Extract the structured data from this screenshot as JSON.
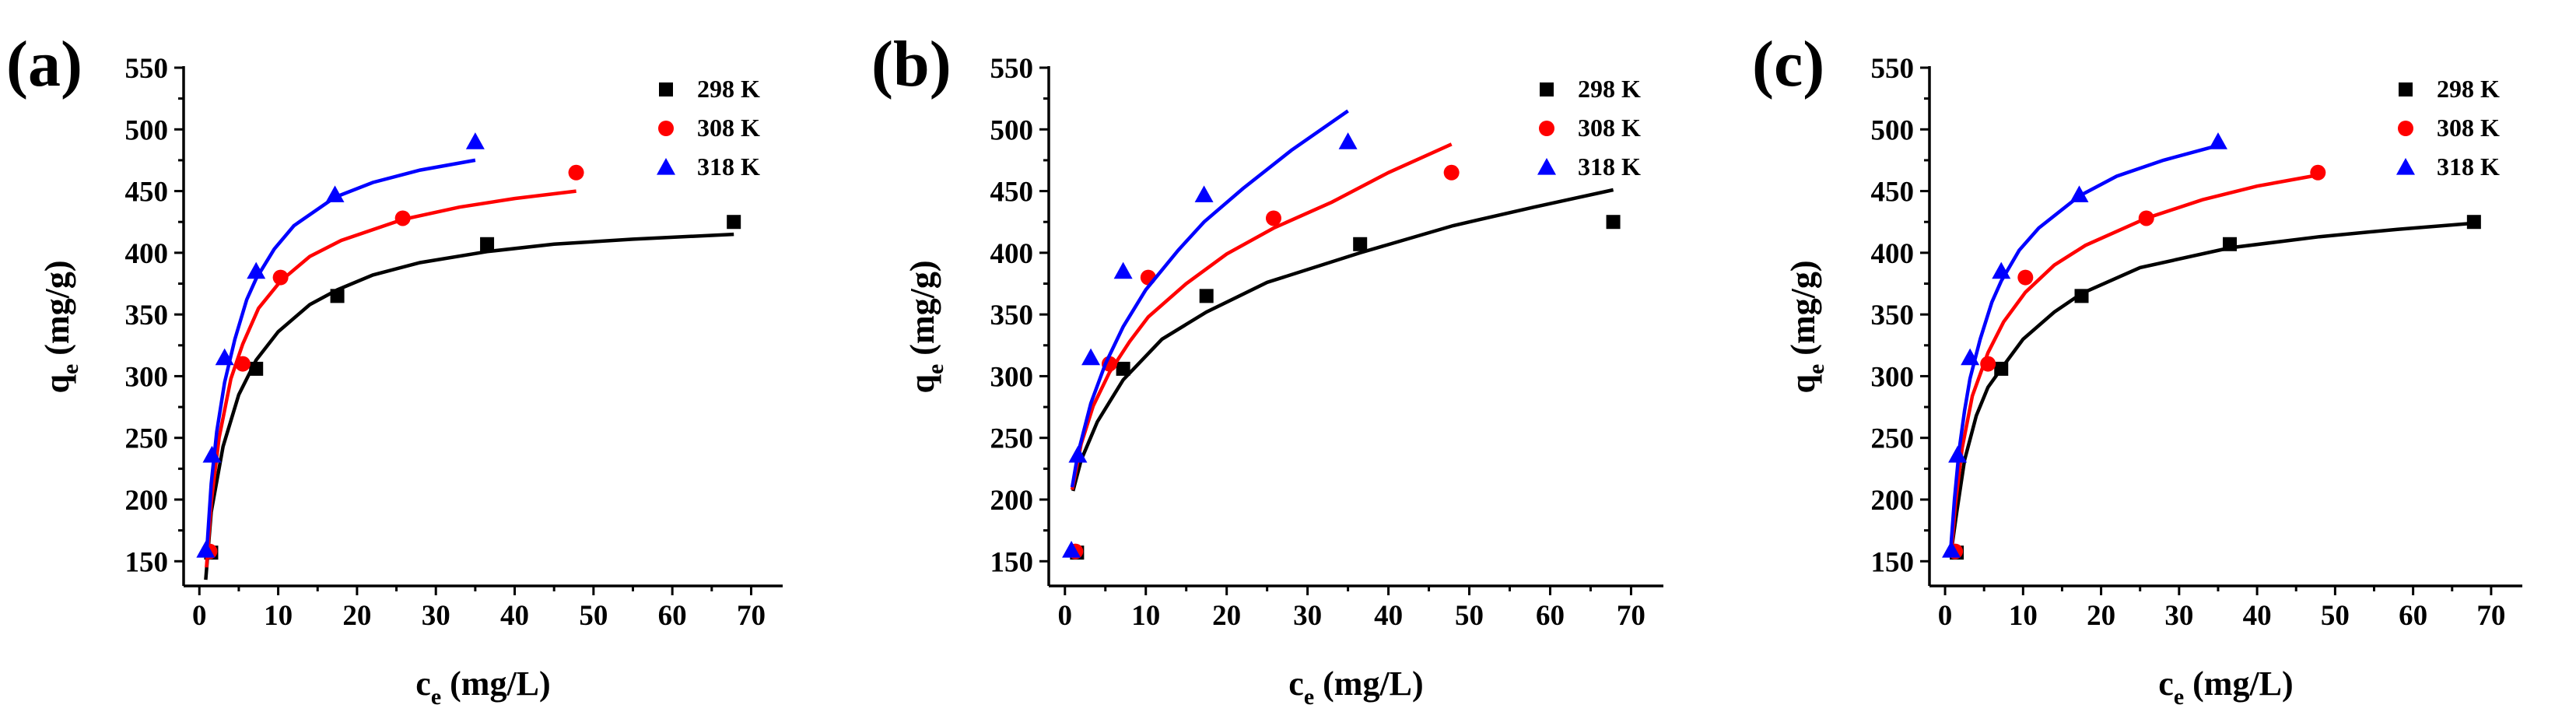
{
  "colors": {
    "298 K": "#000000",
    "308 K": "#ff0000",
    "318 K": "#0000ff"
  },
  "chart_data": [
    {
      "panel": "(a)",
      "type": "scatter",
      "xlabel": {
        "main": "c",
        "sub": "e",
        "unit": " (mg/L)"
      },
      "ylabel": {
        "main": "q",
        "sub": "e",
        "unit": " (mg/g)"
      },
      "xlim": [
        -2,
        74
      ],
      "ylim": [
        130,
        550
      ],
      "xticks": [
        0,
        10,
        20,
        30,
        40,
        50,
        60,
        70
      ],
      "yticks": [
        150,
        200,
        250,
        300,
        350,
        400,
        450,
        500,
        550
      ],
      "legend_position": "top-right",
      "series": [
        {
          "name": "298 K",
          "marker": "square",
          "x": [
            1.5,
            7.2,
            17.5,
            36.5,
            67.8
          ],
          "y": [
            157,
            306,
            365,
            407,
            425
          ],
          "fit": {
            "x": [
              0.8,
              1.5,
              3,
              5,
              7.2,
              10,
              14,
              17.5,
              22,
              28,
              36.5,
              45,
              55,
              67.8
            ],
            "y": [
              135,
              190,
              243,
              285,
              313,
              336,
              358,
              370,
              382,
              392,
              401,
              407,
              411,
              415
            ]
          }
        },
        {
          "name": "308 K",
          "marker": "circle",
          "x": [
            1.3,
            5.5,
            10.3,
            25.8,
            47.8
          ],
          "y": [
            158,
            310,
            380,
            428,
            465
          ],
          "fit": {
            "x": [
              0.9,
              1.5,
              2.5,
              4,
              5.5,
              7.5,
              10.3,
              14,
              18,
              25.8,
              33,
              40,
              47.8
            ],
            "y": [
              145,
              198,
              250,
              298,
              326,
              355,
              377,
              397,
              410,
              427,
              437,
              444,
              450
            ]
          }
        },
        {
          "name": "318 K",
          "marker": "triangle",
          "x": [
            0.8,
            1.6,
            3.2,
            7.2,
            17.2,
            35
          ],
          "y": [
            159,
            236,
            315,
            385,
            447,
            490
          ],
          "fit": {
            "x": [
              0.9,
              1.5,
              2.2,
              3.2,
              4.5,
              6,
              7.2,
              9.5,
              12,
              17.2,
              22,
              28,
              35
            ],
            "y": [
              155,
              213,
              255,
              295,
              330,
              362,
              379,
              403,
              422,
              445,
              457,
              467,
              475
            ]
          }
        }
      ]
    },
    {
      "panel": "(b)",
      "type": "scatter",
      "xlabel": {
        "main": "c",
        "sub": "e",
        "unit": " (mg/L)"
      },
      "ylabel": {
        "main": "q",
        "sub": "e",
        "unit": " (mg/g)"
      },
      "xlim": [
        -2,
        74
      ],
      "ylim": [
        130,
        550
      ],
      "xticks": [
        0,
        10,
        20,
        30,
        40,
        50,
        60,
        70
      ],
      "yticks": [
        150,
        200,
        250,
        300,
        350,
        400,
        450,
        500,
        550
      ],
      "legend_position": "top-right",
      "series": [
        {
          "name": "298 K",
          "marker": "square",
          "x": [
            1.5,
            7.2,
            17.5,
            36.5,
            67.8
          ],
          "y": [
            157,
            306,
            365,
            407,
            425
          ],
          "fit": {
            "x": [
              1.0,
              2,
              4,
              7.2,
              12,
              17.5,
              25,
              36.5,
              48,
              58,
              67.8
            ],
            "y": [
              207,
              232,
              263,
              297,
              330,
              352,
              376,
              400,
              422,
              437,
              451
            ]
          }
        },
        {
          "name": "308 K",
          "marker": "circle",
          "x": [
            1.3,
            5.5,
            10.3,
            25.8,
            47.8
          ],
          "y": [
            158,
            310,
            380,
            428,
            465
          ],
          "fit": {
            "x": [
              0.9,
              2,
              3.5,
              5.5,
              8,
              10.3,
              15,
              20,
              25.8,
              33,
              40,
              47.8
            ],
            "y": [
              208,
              245,
              276,
              303,
              328,
              348,
              375,
              399,
              420,
              441,
              465,
              488
            ]
          }
        },
        {
          "name": "318 K",
          "marker": "triangle",
          "x": [
            0.8,
            1.6,
            3.2,
            7.2,
            17.2,
            35
          ],
          "y": [
            159,
            236,
            315,
            385,
            447,
            490
          ],
          "fit": {
            "x": [
              0.9,
              1.6,
              3.2,
              5,
              7.2,
              10,
              14,
              17.2,
              22,
              28,
              35
            ],
            "y": [
              210,
              237,
              278,
              310,
              340,
              370,
              402,
              425,
              452,
              483,
              515
            ]
          }
        }
      ]
    },
    {
      "panel": "(c)",
      "type": "scatter",
      "xlabel": {
        "main": "c",
        "sub": "e",
        "unit": " (mg/L)"
      },
      "ylabel": {
        "main": "q",
        "sub": "e",
        "unit": " (mg/g)"
      },
      "xlim": [
        -2,
        74
      ],
      "ylim": [
        130,
        550
      ],
      "xticks": [
        0,
        10,
        20,
        30,
        40,
        50,
        60,
        70
      ],
      "yticks": [
        150,
        200,
        250,
        300,
        350,
        400,
        450,
        500,
        550
      ],
      "legend_position": "top-right",
      "series": [
        {
          "name": "298 K",
          "marker": "square",
          "x": [
            1.5,
            7.2,
            17.5,
            36.5,
            67.8
          ],
          "y": [
            157,
            306,
            365,
            407,
            425
          ],
          "fit": {
            "x": [
              0.9,
              1.5,
              2.5,
              4,
              5.5,
              7.2,
              10,
              14,
              17.5,
              25,
              36.5,
              48,
              58,
              67.8
            ],
            "y": [
              163,
              190,
              232,
              268,
              291,
              306,
              330,
              352,
              367,
              388,
              404,
              413,
              419,
              424
            ]
          }
        },
        {
          "name": "308 K",
          "marker": "circle",
          "x": [
            1.3,
            5.5,
            10.3,
            25.8,
            47.8
          ],
          "y": [
            158,
            310,
            380,
            428,
            465
          ],
          "fit": {
            "x": [
              0.8,
              1.3,
              2.2,
              3.5,
              5.5,
              7.5,
              10.3,
              14,
              18,
              25.8,
              33,
              40,
              47.8
            ],
            "y": [
              158,
              195,
              242,
              284,
              319,
              344,
              368,
              390,
              406,
              428,
              443,
              454,
              463
            ]
          }
        },
        {
          "name": "318 K",
          "marker": "triangle",
          "x": [
            0.8,
            1.6,
            3.2,
            7.2,
            17.2,
            35
          ],
          "y": [
            159,
            236,
            315,
            385,
            447,
            490
          ],
          "fit": {
            "x": [
              0.7,
              1.2,
              1.8,
              2.5,
              3.2,
              4.5,
              6,
              7.2,
              9.5,
              12,
              17.2,
              22,
              28,
              35
            ],
            "y": [
              158,
              200,
              240,
              272,
              298,
              330,
              360,
              377,
              402,
              420,
              446,
              462,
              475,
              487
            ]
          }
        }
      ]
    }
  ]
}
